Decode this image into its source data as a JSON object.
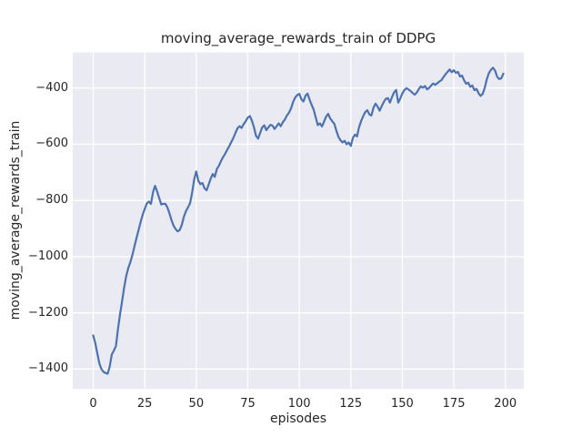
{
  "figure": {
    "background": "#ffffff"
  },
  "chart_data": {
    "type": "line",
    "title": "moving_average_rewards_train of DDPG",
    "xlabel": "episodes",
    "ylabel": "moving_average_rewards_train",
    "x_start": 0,
    "x_step": 1,
    "values": [
      -1280,
      -1308,
      -1345,
      -1380,
      -1400,
      -1410,
      -1414,
      -1416,
      -1390,
      -1348,
      -1334,
      -1318,
      -1258,
      -1205,
      -1158,
      -1110,
      -1069,
      -1040,
      -1020,
      -994,
      -963,
      -934,
      -905,
      -876,
      -851,
      -830,
      -810,
      -804,
      -812,
      -770,
      -748,
      -768,
      -792,
      -814,
      -812,
      -812,
      -825,
      -846,
      -870,
      -890,
      -902,
      -910,
      -905,
      -886,
      -858,
      -838,
      -824,
      -810,
      -772,
      -724,
      -697,
      -730,
      -742,
      -738,
      -757,
      -764,
      -744,
      -722,
      -706,
      -716,
      -688,
      -676,
      -660,
      -646,
      -634,
      -620,
      -607,
      -592,
      -578,
      -560,
      -543,
      -536,
      -542,
      -528,
      -518,
      -505,
      -500,
      -516,
      -540,
      -570,
      -580,
      -560,
      -540,
      -533,
      -550,
      -540,
      -531,
      -534,
      -546,
      -536,
      -526,
      -536,
      -522,
      -512,
      -498,
      -488,
      -472,
      -450,
      -434,
      -425,
      -421,
      -440,
      -448,
      -428,
      -420,
      -442,
      -460,
      -478,
      -506,
      -532,
      -526,
      -537,
      -520,
      -502,
      -492,
      -508,
      -518,
      -528,
      -552,
      -574,
      -586,
      -594,
      -588,
      -600,
      -594,
      -606,
      -578,
      -566,
      -572,
      -540,
      -518,
      -500,
      -486,
      -479,
      -494,
      -498,
      -470,
      -456,
      -466,
      -481,
      -464,
      -450,
      -438,
      -436,
      -452,
      -432,
      -415,
      -407,
      -452,
      -437,
      -420,
      -407,
      -401,
      -405,
      -411,
      -418,
      -424,
      -416,
      -404,
      -394,
      -399,
      -393,
      -405,
      -400,
      -391,
      -384,
      -389,
      -383,
      -377,
      -372,
      -361,
      -351,
      -342,
      -334,
      -344,
      -337,
      -346,
      -343,
      -359,
      -356,
      -373,
      -385,
      -381,
      -396,
      -391,
      -408,
      -403,
      -419,
      -428,
      -421,
      -399,
      -369,
      -347,
      -335,
      -328,
      -338,
      -360,
      -368,
      -366,
      -349
    ],
    "xlim": [
      -9.95,
      208.95
    ],
    "ylim": [
      -1470.4,
      -273.6
    ],
    "xticks": {
      "values": [
        0,
        25,
        50,
        75,
        100,
        125,
        150,
        175,
        200
      ],
      "labels": [
        "0",
        "25",
        "50",
        "75",
        "100",
        "125",
        "150",
        "175",
        "200"
      ]
    },
    "yticks": {
      "values": [
        -400,
        -600,
        -800,
        -1000,
        -1200,
        -1400
      ],
      "labels": [
        "−400",
        "−600",
        "−800",
        "−1000",
        "−1200",
        "−1400"
      ]
    },
    "grid": true,
    "legend": null,
    "style": {
      "line_color": "#4c72b0",
      "line_width": 2.2,
      "axes_bg": "#eaeaf2",
      "grid_color": "#ffffff",
      "text_color": "#262626"
    }
  }
}
